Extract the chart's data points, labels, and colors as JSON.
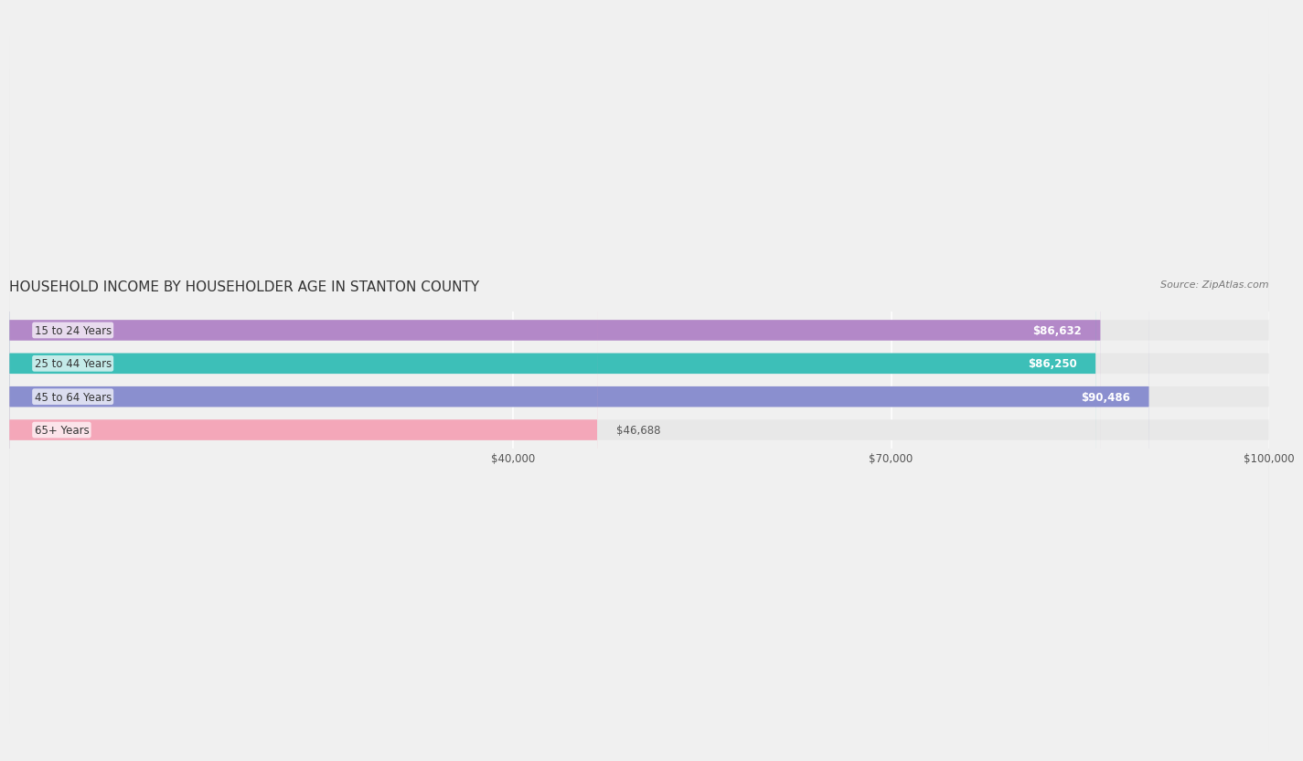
{
  "title": "HOUSEHOLD INCOME BY HOUSEHOLDER AGE IN STANTON COUNTY",
  "source": "Source: ZipAtlas.com",
  "categories": [
    "15 to 24 Years",
    "25 to 44 Years",
    "45 to 64 Years",
    "65+ Years"
  ],
  "values": [
    86632,
    86250,
    90486,
    46688
  ],
  "bar_colors": [
    "#b388c8",
    "#3dbfb8",
    "#8a8fcf",
    "#f4a7b9"
  ],
  "label_colors": [
    "#ffffff",
    "#ffffff",
    "#ffffff",
    "#555555"
  ],
  "value_labels": [
    "$86,632",
    "$86,250",
    "$90,486",
    "$46,688"
  ],
  "xlim": [
    0,
    100000
  ],
  "xticks": [
    40000,
    70000,
    100000
  ],
  "xtick_labels": [
    "$40,000",
    "$70,000",
    "$100,000"
  ],
  "background_color": "#f0f0f0",
  "bar_background": "#e8e8e8",
  "title_fontsize": 11,
  "source_fontsize": 8,
  "bar_height": 0.62,
  "figsize": [
    14.06,
    2.33
  ]
}
